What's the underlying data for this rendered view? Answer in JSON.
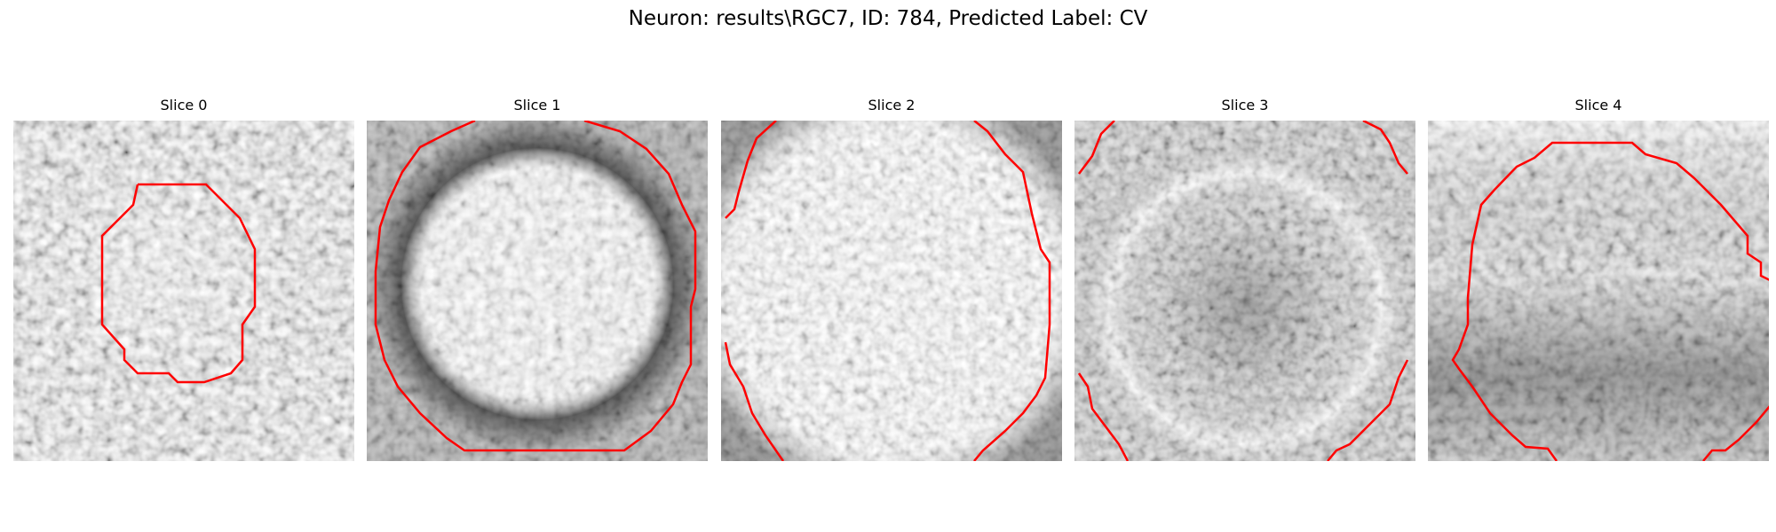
{
  "figure": {
    "title": "Neuron: results\\RGC7, ID: 784, Predicted Label: CV",
    "slices": [
      {
        "label": "Slice 0"
      },
      {
        "label": "Slice 1"
      },
      {
        "label": "Slice 2"
      },
      {
        "label": "Slice 3"
      },
      {
        "label": "Slice 4"
      }
    ]
  },
  "colors": {
    "contour": "#ff0000",
    "background": "#ffffff"
  }
}
